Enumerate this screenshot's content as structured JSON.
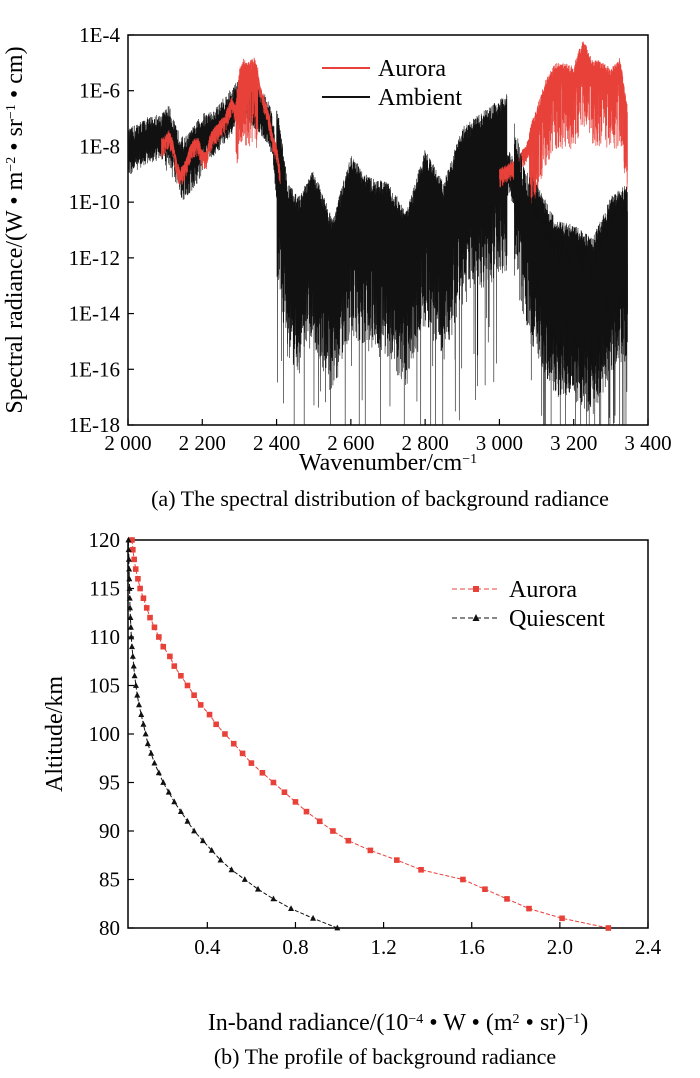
{
  "chart_data": [
    {
      "type": "line",
      "caption": "(a) The spectral distribution of background radiance",
      "xlabel": "Wavenumber/cm",
      "xlabel_sup": "−1",
      "ylabel_parts": [
        "Spectral radiance/(W • m",
        "−2",
        " • sr",
        "−1",
        " • cm)"
      ],
      "xlim": [
        2000,
        3400
      ],
      "x_ticks": [
        2000,
        2200,
        2400,
        2600,
        2800,
        3000,
        3200,
        3400
      ],
      "x_tick_labels": [
        "2 000",
        "2 200",
        "2 400",
        "2 600",
        "2 800",
        "3 000",
        "3 200",
        "3 400"
      ],
      "y_scale": "log",
      "ylim_exp": [
        -18,
        -4
      ],
      "y_ticks_exp": [
        -18,
        -16,
        -14,
        -12,
        -10,
        -8,
        -6,
        -4
      ],
      "y_tick_labels": [
        "1E-18",
        "1E-16",
        "1E-14",
        "1E-12",
        "1E-10",
        "1E-8",
        "1E-6",
        "1E-4"
      ],
      "legend": {
        "placement": "top-center"
      },
      "series": [
        {
          "name": "Aurora",
          "color": "#e8413a",
          "x": [
            2090,
            2100,
            2110,
            2120,
            2130,
            2140,
            2150,
            2160,
            2170,
            2180,
            2190,
            2200,
            2210,
            2220,
            2230,
            2240,
            2250,
            2260,
            2270,
            2280,
            2290,
            2300,
            2310,
            2320,
            2330,
            2340,
            2350,
            2360,
            2370,
            2380,
            2390,
            2400,
            2410,
            3000,
            3050,
            3075,
            3100,
            3125,
            3150,
            3175,
            3200,
            3225,
            3250,
            3275,
            3300,
            3325,
            3345
          ],
          "y_log10": [
            -7.9,
            -7.8,
            -7.6,
            -7.9,
            -8.6,
            -9.0,
            -8.8,
            -8.5,
            -8.0,
            -7.9,
            -7.9,
            -8.3,
            -8.4,
            -7.8,
            -7.5,
            -7.4,
            -7.2,
            -7.1,
            -6.7,
            -6.4,
            -6.7,
            -5.6,
            -5.2,
            -5.4,
            -5.3,
            -5.2,
            -5.5,
            -6.2,
            -6.5,
            -7.0,
            -7.8,
            -8.1,
            -9.0,
            -9.0,
            -8.6,
            -8.0,
            -7.0,
            -6.0,
            -5.4,
            -5.4,
            -5.5,
            -4.5,
            -5.3,
            -5.3,
            -5.6,
            -5.2,
            -7.0
          ]
        },
        {
          "name": "Ambient",
          "color": "#111111",
          "x": [
            2000,
            2030,
            2060,
            2090,
            2110,
            2130,
            2150,
            2170,
            2200,
            2230,
            2260,
            2290,
            2320,
            2340,
            2370,
            2390,
            2400,
            2430,
            2460,
            2500,
            2550,
            2600,
            2650,
            2700,
            2750,
            2800,
            2850,
            2900,
            2950,
            3000,
            3030,
            3060,
            3100,
            3150,
            3200,
            3250,
            3300,
            3345
          ],
          "y_log10": [
            -8.5,
            -8.2,
            -8.0,
            -7.9,
            -7.6,
            -8.4,
            -8.8,
            -8.5,
            -7.9,
            -7.8,
            -7.3,
            -6.8,
            -6.4,
            -6.8,
            -7.2,
            -7.9,
            -9.5,
            -12.5,
            -13.0,
            -12.0,
            -13.8,
            -11.5,
            -12.3,
            -12.5,
            -13.5,
            -11.3,
            -12.5,
            -10.5,
            -10.0,
            -9.5,
            -9.2,
            -11.0,
            -12.5,
            -13.8,
            -14.0,
            -14.5,
            -13.0,
            -12.5
          ]
        }
      ]
    },
    {
      "type": "line",
      "caption": "(b) The profile of background radiance",
      "xlabel_parts": [
        "In-band radiance/(10",
        "−4",
        " • W • (m",
        "2",
        " • sr)",
        "−1",
        ")"
      ],
      "ylabel": "Altitude/km",
      "xlim": [
        0.04,
        2.4
      ],
      "ylim": [
        80,
        120
      ],
      "x_ticks": [
        0.4,
        0.8,
        1.2,
        1.6,
        2.0,
        2.4
      ],
      "x_tick_labels": [
        "0.4",
        "0.8",
        "1.2",
        "1.6",
        "2.0",
        "2.4"
      ],
      "y_ticks": [
        80,
        85,
        90,
        95,
        100,
        105,
        110,
        115,
        120
      ],
      "y_tick_labels": [
        "80",
        "85",
        "90",
        "95",
        "100",
        "105",
        "110",
        "115",
        "120"
      ],
      "legend": {
        "placement": "top-right"
      },
      "series": [
        {
          "name": "Aurora",
          "color": "#e8413a",
          "marker": "square",
          "y": [
            80,
            81,
            82,
            83,
            84,
            85,
            86,
            87,
            88,
            89,
            90,
            91,
            92,
            93,
            94,
            95,
            96,
            97,
            98,
            99,
            100,
            101,
            102,
            103,
            104,
            105,
            106,
            107,
            108,
            109,
            110,
            111,
            112,
            113,
            114,
            115,
            116,
            117,
            118,
            119,
            120
          ],
          "x": [
            2.22,
            2.01,
            1.86,
            1.76,
            1.66,
            1.56,
            1.37,
            1.26,
            1.14,
            1.04,
            0.97,
            0.91,
            0.85,
            0.8,
            0.75,
            0.7,
            0.65,
            0.6,
            0.56,
            0.52,
            0.48,
            0.44,
            0.41,
            0.37,
            0.34,
            0.31,
            0.28,
            0.25,
            0.23,
            0.2,
            0.18,
            0.16,
            0.14,
            0.125,
            0.11,
            0.095,
            0.085,
            0.075,
            0.068,
            0.062,
            0.058
          ]
        },
        {
          "name": "Quiescent",
          "color": "#111111",
          "marker": "triangle",
          "y": [
            80,
            81,
            82,
            83,
            84,
            85,
            86,
            87,
            88,
            89,
            90,
            91,
            92,
            93,
            94,
            95,
            96,
            97,
            98,
            99,
            100,
            101,
            102,
            103,
            104,
            105,
            106,
            107,
            108,
            109,
            110,
            111,
            112,
            113,
            114,
            115,
            116,
            117,
            118,
            119,
            120
          ],
          "x": [
            0.99,
            0.88,
            0.78,
            0.7,
            0.63,
            0.57,
            0.51,
            0.46,
            0.42,
            0.38,
            0.34,
            0.31,
            0.28,
            0.25,
            0.225,
            0.2,
            0.18,
            0.16,
            0.145,
            0.13,
            0.12,
            0.11,
            0.1,
            0.09,
            0.082,
            0.076,
            0.07,
            0.066,
            0.062,
            0.058,
            0.055,
            0.053,
            0.051,
            0.049,
            0.048,
            0.047,
            0.046,
            0.045,
            0.044,
            0.043,
            0.042
          ]
        }
      ]
    }
  ]
}
